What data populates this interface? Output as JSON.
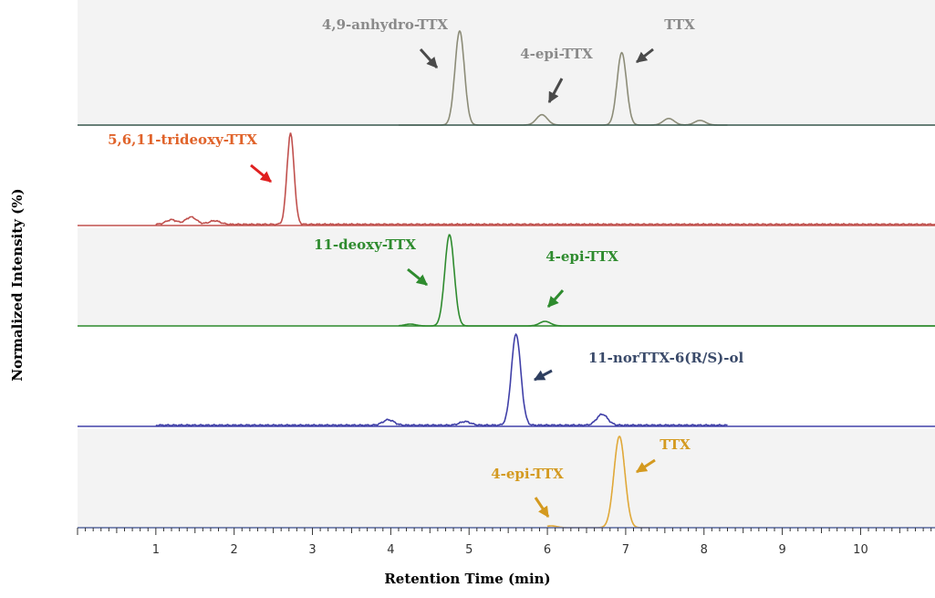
{
  "chart_data": {
    "type": "line",
    "title": "",
    "xlabel": "Retention Time (min)",
    "ylabel": "Normalized Intensity (%)",
    "xlim": [
      0,
      10.95
    ],
    "x_ticks": [
      "1",
      "2",
      "3",
      "4",
      "5",
      "6",
      "7",
      "8",
      "9",
      "10"
    ],
    "grid": false,
    "legend": "none",
    "panels": [
      {
        "color": "#8c8c78",
        "peaks": [
          {
            "x": 4.88,
            "height": 100
          },
          {
            "x": 5.93,
            "height": 11
          },
          {
            "x": 6.95,
            "height": 77
          },
          {
            "x": 7.55,
            "height": 7
          },
          {
            "x": 7.95,
            "height": 5
          }
        ],
        "annotations": [
          {
            "text": "4,9-anhydro-TTX",
            "color": "#8a8a8a",
            "arrow_color": "#4a4a4a",
            "target_x": 4.88
          },
          {
            "text": "4-epi-TTX",
            "color": "#8a8a8a",
            "arrow_color": "#4a4a4a",
            "target_x": 5.93
          },
          {
            "text": "TTX",
            "color": "#8a8a8a",
            "arrow_color": "#4a4a4a",
            "target_x": 6.95
          }
        ]
      },
      {
        "color": "#c0504d",
        "peaks": [
          {
            "x": 1.2,
            "height": 5
          },
          {
            "x": 1.45,
            "height": 8
          },
          {
            "x": 1.75,
            "height": 4
          },
          {
            "x": 2.72,
            "height": 100
          }
        ],
        "annotations": [
          {
            "text": "5,6,11-trideoxy-TTX",
            "color": "#e0632a",
            "arrow_color": "#e02020",
            "target_x": 2.72
          }
        ]
      },
      {
        "color": "#2e8b2e",
        "peaks": [
          {
            "x": 4.25,
            "height": 2
          },
          {
            "x": 4.75,
            "height": 100
          },
          {
            "x": 5.97,
            "height": 5
          }
        ],
        "annotations": [
          {
            "text": "11-deoxy-TTX",
            "color": "#2e8b2e",
            "arrow_color": "#2e8b2e",
            "target_x": 4.75
          },
          {
            "text": "4-epi-TTX",
            "color": "#2e8b2e",
            "arrow_color": "#2e8b2e",
            "target_x": 5.97
          }
        ]
      },
      {
        "color": "#4040a8",
        "peaks": [
          {
            "x": 3.97,
            "height": 6
          },
          {
            "x": 4.95,
            "height": 4
          },
          {
            "x": 5.6,
            "height": 100
          },
          {
            "x": 6.7,
            "height": 12
          }
        ],
        "annotations": [
          {
            "text": "11-norTTX-6(R/S)-ol",
            "color": "#3a4a6a",
            "arrow_color": "#2e3f60",
            "target_x": 5.6
          }
        ]
      },
      {
        "color": "#e0a838",
        "peaks": [
          {
            "x": 6.05,
            "height": 2
          },
          {
            "x": 6.92,
            "height": 100
          }
        ],
        "annotations": [
          {
            "text": "4-epi-TTX",
            "color": "#d49a20",
            "arrow_color": "#d49a20",
            "target_x": 6.05
          },
          {
            "text": "TTX",
            "color": "#d49a20",
            "arrow_color": "#d49a20",
            "target_x": 6.92
          }
        ]
      }
    ]
  }
}
